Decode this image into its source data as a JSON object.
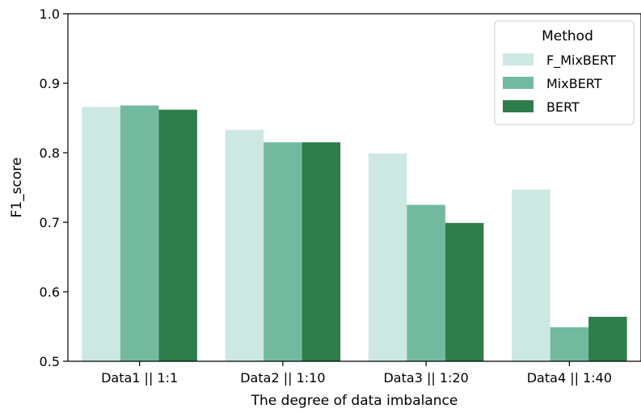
{
  "chart_data": {
    "type": "bar",
    "title": "",
    "xlabel": "The degree of data imbalance",
    "ylabel": "F1_score",
    "ylim": [
      0.5,
      1.0
    ],
    "yticks": [
      "0.5",
      "0.6",
      "0.7",
      "0.8",
      "0.9",
      "1.0"
    ],
    "categories": [
      "Data1 || 1:1",
      "Data2 || 1:10",
      "Data3 || 1:20",
      "Data4 || 1:40"
    ],
    "legend": {
      "title": "Method",
      "position": "top-right"
    },
    "grid": false,
    "series": [
      {
        "name": "F_MixBERT",
        "color": "#cde8e2",
        "values": [
          0.866,
          0.833,
          0.799,
          0.747
        ]
      },
      {
        "name": "MixBERT",
        "color": "#72b9a0",
        "values": [
          0.868,
          0.815,
          0.725,
          0.549
        ]
      },
      {
        "name": "BERT",
        "color": "#2e7d4a",
        "values": [
          0.862,
          0.815,
          0.699,
          0.564
        ]
      }
    ]
  }
}
